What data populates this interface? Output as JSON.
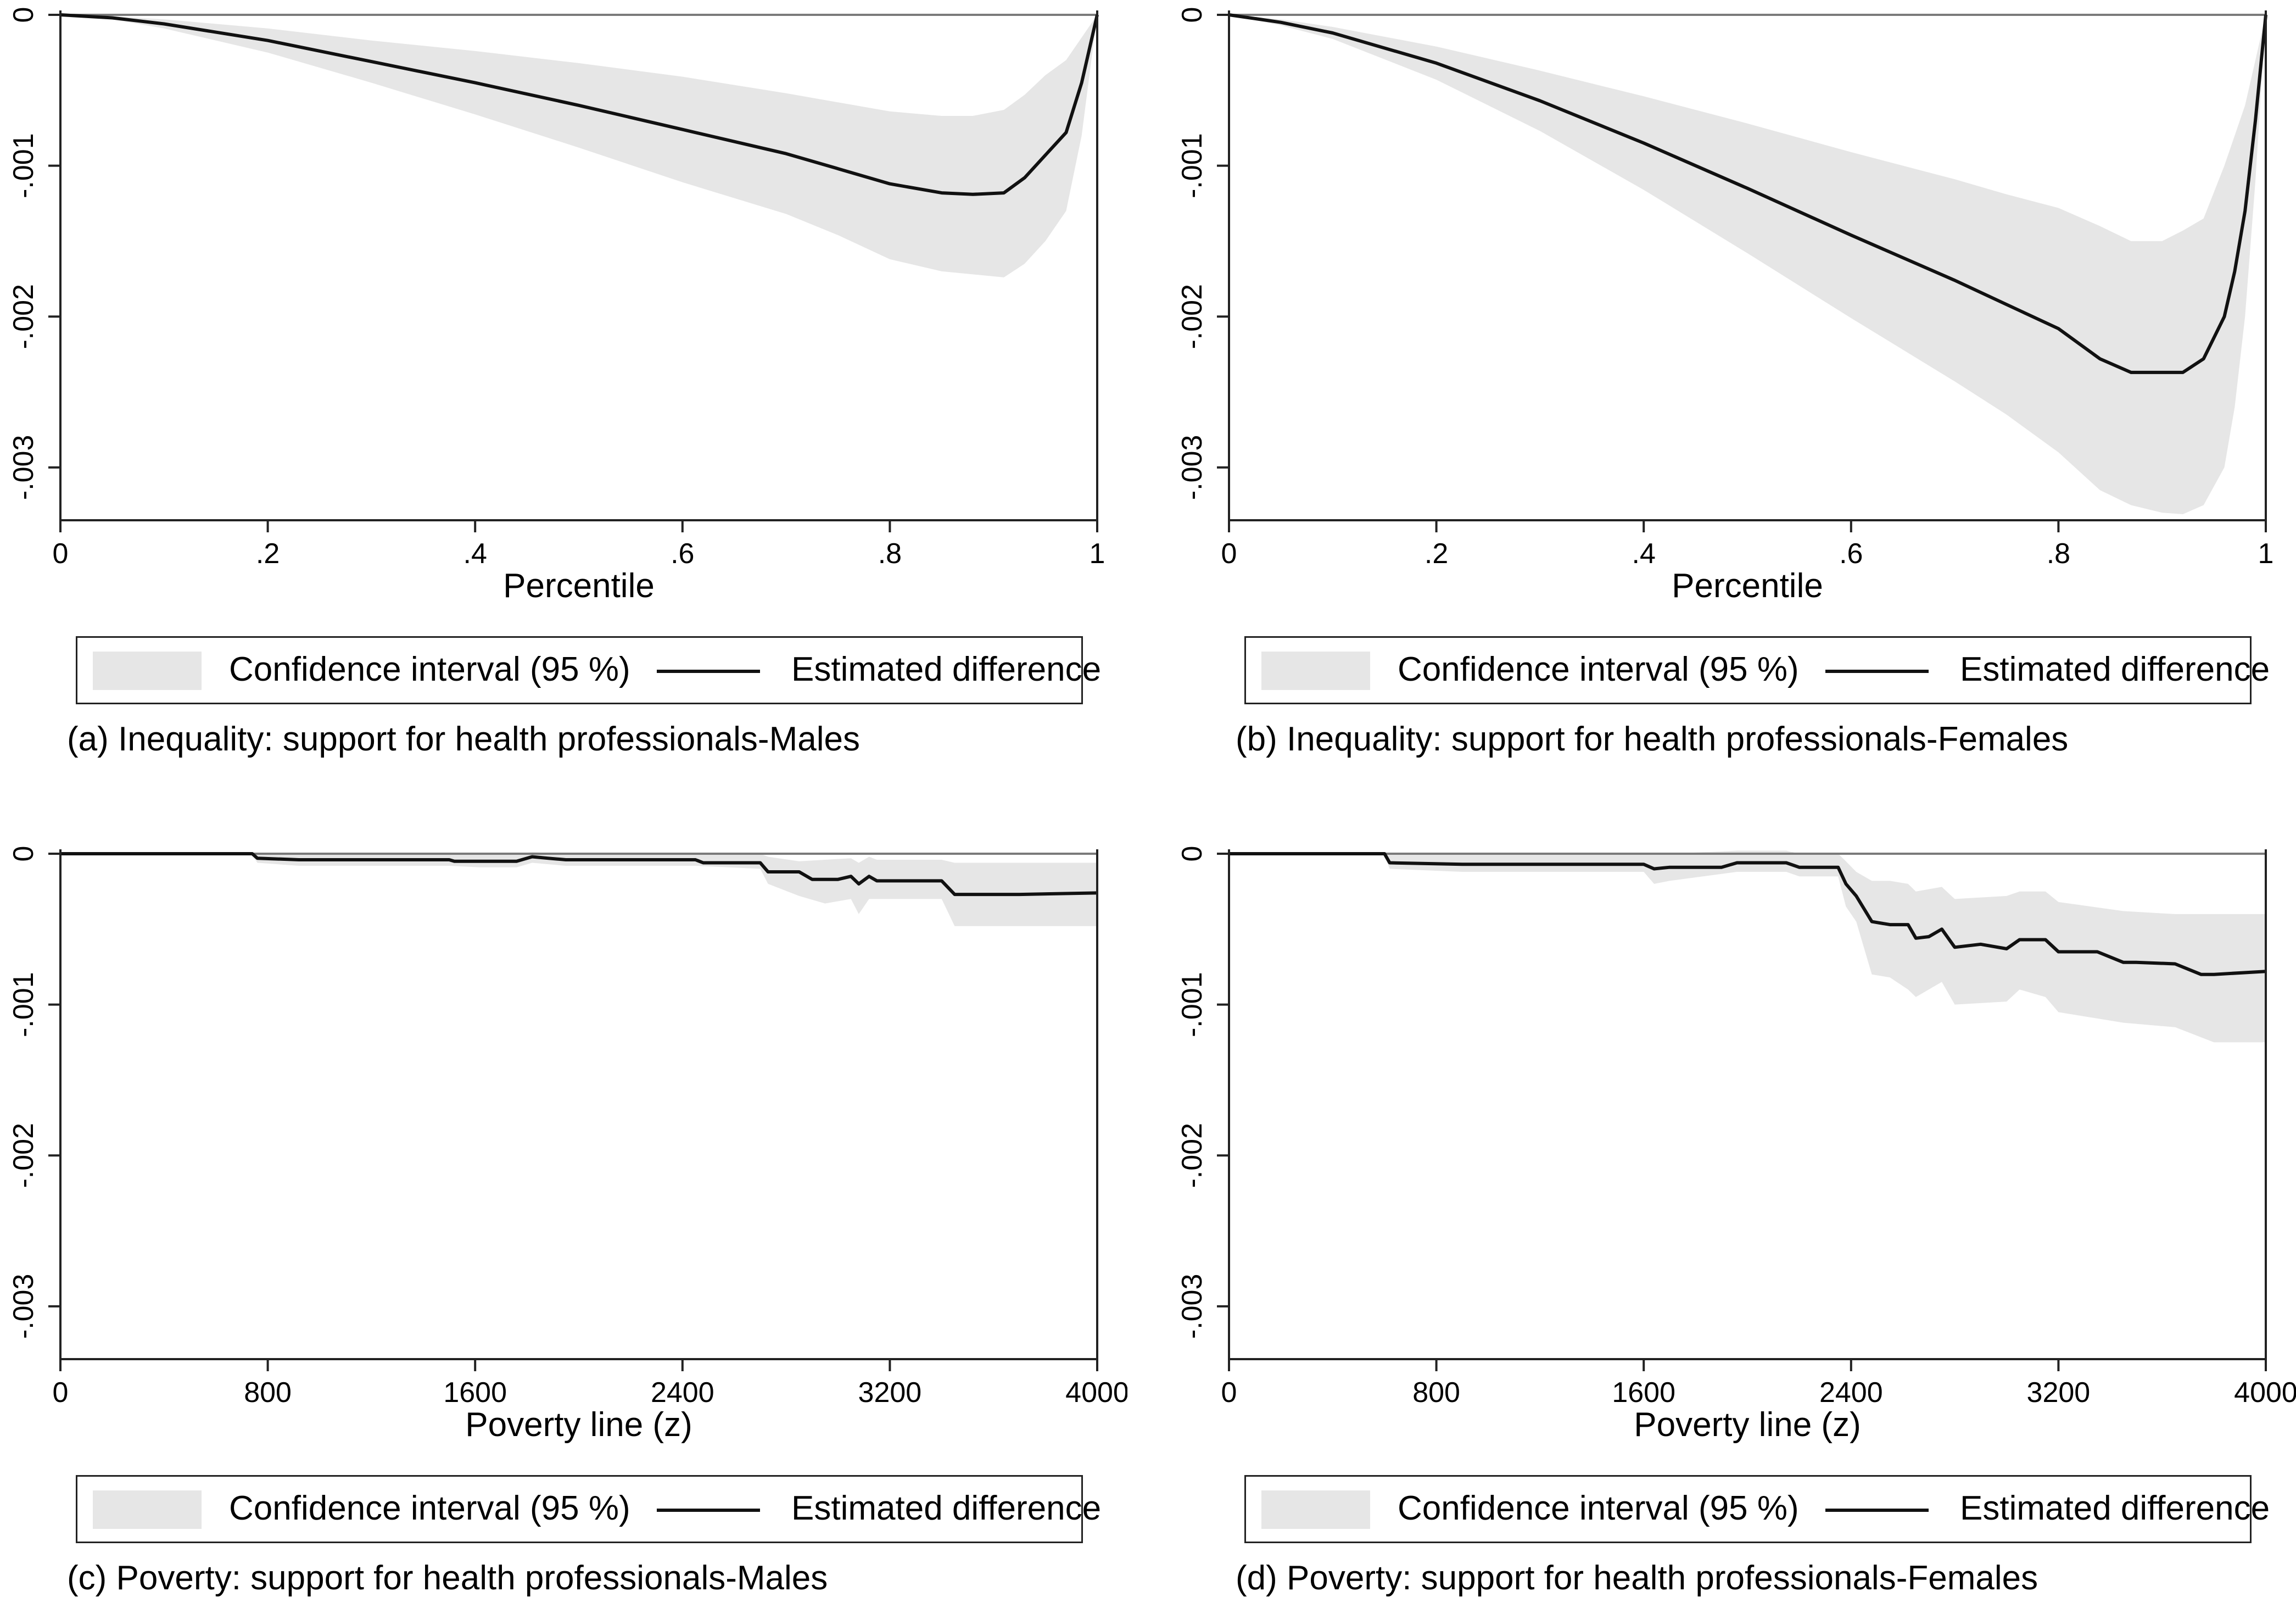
{
  "legend": {
    "ci_label": "Confidence interval (95 %)",
    "line_label": "Estimated difference"
  },
  "colors": {
    "band": "#e6e6e6",
    "line": "#111111",
    "axis": "#222222",
    "zero_line": "#7a7a7a"
  },
  "chart_data": [
    {
      "type": "area",
      "caption": "(a) Inequality: support for health professionals-Males",
      "xlabel": "Percentile",
      "ylabel": "",
      "xlim": [
        0,
        1
      ],
      "ylim": [
        -0.00335,
        0
      ],
      "x_ticks": [
        0,
        0.2,
        0.4,
        0.6,
        0.8,
        1
      ],
      "x_tick_labels": [
        "0",
        ".2",
        ".4",
        ".6",
        ".8",
        "1"
      ],
      "y_ticks": [
        0,
        -0.001,
        -0.002,
        -0.003
      ],
      "y_tick_labels": [
        "0",
        "-.001",
        "-.002",
        "-.003"
      ],
      "grid": false,
      "legend_position": "bottom",
      "series": [
        {
          "name": "Estimated difference",
          "x": [
            0,
            0.05,
            0.1,
            0.2,
            0.3,
            0.4,
            0.5,
            0.6,
            0.7,
            0.75,
            0.8,
            0.85,
            0.88,
            0.91,
            0.93,
            0.95,
            0.97,
            0.985,
            1
          ],
          "y": [
            0,
            -2e-05,
            -6e-05,
            -0.00017,
            -0.00031,
            -0.00045,
            -0.0006,
            -0.00076,
            -0.00092,
            -0.00102,
            -0.00112,
            -0.00118,
            -0.00119,
            -0.00118,
            -0.00108,
            -0.00093,
            -0.00078,
            -0.00045,
            0
          ]
        },
        {
          "name": "Confidence interval (95 %)",
          "x": [
            0,
            0.05,
            0.1,
            0.2,
            0.3,
            0.4,
            0.5,
            0.6,
            0.7,
            0.75,
            0.8,
            0.85,
            0.88,
            0.91,
            0.93,
            0.95,
            0.97,
            0.985,
            1
          ],
          "y_lower": [
            0,
            -3e-05,
            -9e-05,
            -0.00025,
            -0.00045,
            -0.00066,
            -0.00088,
            -0.00111,
            -0.00132,
            -0.00146,
            -0.00162,
            -0.0017,
            -0.00172,
            -0.00174,
            -0.00165,
            -0.0015,
            -0.0013,
            -0.0008,
            0
          ],
          "y_upper": [
            0,
            -1e-05,
            -3e-05,
            -9e-05,
            -0.00017,
            -0.00024,
            -0.00032,
            -0.00041,
            -0.00052,
            -0.00058,
            -0.00064,
            -0.00067,
            -0.00067,
            -0.00063,
            -0.00053,
            -0.0004,
            -0.0003,
            -0.00015,
            0
          ]
        }
      ]
    },
    {
      "type": "area",
      "caption": "(b) Inequality: support for health professionals-Females",
      "xlabel": "Percentile",
      "ylabel": "",
      "xlim": [
        0,
        1
      ],
      "ylim": [
        -0.00335,
        0
      ],
      "x_ticks": [
        0,
        0.2,
        0.4,
        0.6,
        0.8,
        1
      ],
      "x_tick_labels": [
        "0",
        ".2",
        ".4",
        ".6",
        ".8",
        "1"
      ],
      "y_ticks": [
        0,
        -0.001,
        -0.002,
        -0.003
      ],
      "y_tick_labels": [
        "0",
        "-.001",
        "-.002",
        "-.003"
      ],
      "grid": false,
      "legend_position": "bottom",
      "series": [
        {
          "name": "Estimated difference",
          "x": [
            0,
            0.05,
            0.1,
            0.2,
            0.3,
            0.4,
            0.5,
            0.6,
            0.7,
            0.75,
            0.8,
            0.84,
            0.87,
            0.9,
            0.92,
            0.94,
            0.96,
            0.97,
            0.98,
            0.99,
            1
          ],
          "y": [
            0,
            -5e-05,
            -0.00012,
            -0.00032,
            -0.00057,
            -0.00085,
            -0.00115,
            -0.00146,
            -0.00176,
            -0.00192,
            -0.00208,
            -0.00228,
            -0.00237,
            -0.00237,
            -0.00237,
            -0.00228,
            -0.002,
            -0.0017,
            -0.0013,
            -0.0007,
            0
          ]
        },
        {
          "name": "Confidence interval (95 %)",
          "x": [
            0,
            0.05,
            0.1,
            0.2,
            0.3,
            0.4,
            0.5,
            0.6,
            0.7,
            0.75,
            0.8,
            0.84,
            0.87,
            0.9,
            0.92,
            0.94,
            0.96,
            0.97,
            0.98,
            0.99,
            1
          ],
          "y_lower": [
            0,
            -7e-05,
            -0.00016,
            -0.00043,
            -0.00077,
            -0.00116,
            -0.00158,
            -0.00201,
            -0.00243,
            -0.00265,
            -0.0029,
            -0.00315,
            -0.00325,
            -0.0033,
            -0.00331,
            -0.00325,
            -0.003,
            -0.0026,
            -0.002,
            -0.0011,
            0
          ],
          "y_upper": [
            0,
            -3e-05,
            -8e-05,
            -0.00021,
            -0.00037,
            -0.00054,
            -0.00072,
            -0.00091,
            -0.00109,
            -0.00119,
            -0.00128,
            -0.0014,
            -0.0015,
            -0.0015,
            -0.00143,
            -0.00135,
            -0.001,
            -0.0008,
            -0.0006,
            -0.0003,
            0
          ]
        }
      ]
    },
    {
      "type": "area",
      "caption": "(c) Poverty: support for health professionals-Males",
      "xlabel": "Poverty line (z)",
      "ylabel": "",
      "xlim": [
        0,
        4000
      ],
      "ylim": [
        -0.00335,
        0
      ],
      "x_ticks": [
        0,
        800,
        1600,
        2400,
        3200,
        4000
      ],
      "x_tick_labels": [
        "0",
        "800",
        "1600",
        "2400",
        "3200",
        "4000"
      ],
      "y_ticks": [
        0,
        -0.001,
        -0.002,
        -0.003
      ],
      "y_tick_labels": [
        "0",
        "-.001",
        "-.002",
        "-.003"
      ],
      "grid": false,
      "legend_position": "bottom",
      "series": [
        {
          "name": "Estimated difference",
          "x": [
            0,
            740,
            760,
            920,
            1500,
            1520,
            1620,
            1640,
            1760,
            1820,
            1880,
            1950,
            2050,
            2450,
            2480,
            2700,
            2730,
            2850,
            2900,
            3000,
            3050,
            3080,
            3120,
            3150,
            3400,
            3450,
            3700,
            4000
          ],
          "y": [
            0,
            0,
            -3e-05,
            -4e-05,
            -4e-05,
            -5e-05,
            -5e-05,
            -5e-05,
            -5e-05,
            -2e-05,
            -3e-05,
            -4e-05,
            -4e-05,
            -4e-05,
            -6e-05,
            -6e-05,
            -0.00012,
            -0.00012,
            -0.00017,
            -0.00017,
            -0.00015,
            -0.0002,
            -0.00015,
            -0.00018,
            -0.00018,
            -0.00027,
            -0.00027,
            -0.00026
          ]
        },
        {
          "name": "Confidence interval (95 %)",
          "x": [
            0,
            740,
            760,
            920,
            1500,
            1620,
            1760,
            1820,
            1950,
            2450,
            2700,
            2730,
            2850,
            2950,
            3050,
            3080,
            3120,
            3150,
            3400,
            3450,
            4000
          ],
          "y_lower": [
            0,
            -1e-05,
            -6e-05,
            -8e-05,
            -8e-05,
            -9e-05,
            -9e-05,
            -6e-05,
            -8e-05,
            -8e-05,
            -0.0001,
            -0.0002,
            -0.00028,
            -0.00033,
            -0.0003,
            -0.0004,
            -0.0003,
            -0.0003,
            -0.0003,
            -0.00048,
            -0.00048
          ],
          "y_upper": [
            0,
            0,
            0,
            0,
            0,
            0,
            0,
            1e-05,
            0,
            0,
            0,
            -2e-05,
            -5e-05,
            -4e-05,
            -3e-05,
            -6e-05,
            -2e-05,
            -4e-05,
            -4e-05,
            -6e-05,
            -6e-05
          ]
        }
      ]
    },
    {
      "type": "area",
      "caption": "(d) Poverty: support for health professionals-Females",
      "xlabel": "Poverty line (z)",
      "ylabel": "",
      "xlim": [
        0,
        4000
      ],
      "ylim": [
        -0.00335,
        0
      ],
      "x_ticks": [
        0,
        800,
        1600,
        2400,
        3200,
        4000
      ],
      "x_tick_labels": [
        "0",
        "800",
        "1600",
        "2400",
        "3200",
        "4000"
      ],
      "y_ticks": [
        0,
        -0.001,
        -0.002,
        -0.003
      ],
      "y_tick_labels": [
        "0",
        "-.001",
        "-.002",
        "-.003"
      ],
      "grid": false,
      "legend_position": "bottom",
      "series": [
        {
          "name": "Estimated difference",
          "x": [
            0,
            600,
            620,
            900,
            1600,
            1640,
            1700,
            1800,
            1900,
            1960,
            2150,
            2200,
            2350,
            2380,
            2420,
            2480,
            2550,
            2620,
            2650,
            2700,
            2750,
            2800,
            2900,
            3000,
            3050,
            3150,
            3200,
            3350,
            3450,
            3500,
            3650,
            3750,
            3800,
            4000
          ],
          "y": [
            0,
            0,
            -6e-05,
            -7e-05,
            -7e-05,
            -0.0001,
            -9e-05,
            -9e-05,
            -9e-05,
            -6e-05,
            -6e-05,
            -9e-05,
            -9e-05,
            -0.0002,
            -0.00028,
            -0.00045,
            -0.00047,
            -0.00047,
            -0.00056,
            -0.00055,
            -0.0005,
            -0.00062,
            -0.0006,
            -0.00063,
            -0.00057,
            -0.00057,
            -0.00065,
            -0.00065,
            -0.00072,
            -0.00072,
            -0.00073,
            -0.0008,
            -0.0008,
            -0.00078
          ]
        },
        {
          "name": "Confidence interval (95 %)",
          "x": [
            0,
            600,
            620,
            900,
            1600,
            1640,
            1700,
            1960,
            2150,
            2200,
            2350,
            2380,
            2420,
            2480,
            2550,
            2620,
            2650,
            2750,
            2800,
            3000,
            3050,
            3150,
            3200,
            3450,
            3650,
            3800,
            4000
          ],
          "y_lower": [
            0,
            -1e-05,
            -0.0001,
            -0.00012,
            -0.00012,
            -0.0002,
            -0.00018,
            -0.00012,
            -0.00012,
            -0.00015,
            -0.00015,
            -0.00035,
            -0.00045,
            -0.0008,
            -0.00082,
            -0.0009,
            -0.00095,
            -0.00085,
            -0.001,
            -0.00098,
            -0.0009,
            -0.00095,
            -0.00105,
            -0.00112,
            -0.00115,
            -0.00125,
            -0.00125
          ],
          "y_upper": [
            0,
            0,
            0,
            0,
            0,
            0,
            0,
            2e-05,
            2e-05,
            0,
            0,
            -5e-05,
            -0.00012,
            -0.00018,
            -0.00018,
            -0.0002,
            -0.00025,
            -0.00022,
            -0.0003,
            -0.00028,
            -0.00025,
            -0.00025,
            -0.00032,
            -0.00038,
            -0.0004,
            -0.0004,
            -0.0004
          ]
        }
      ]
    }
  ]
}
